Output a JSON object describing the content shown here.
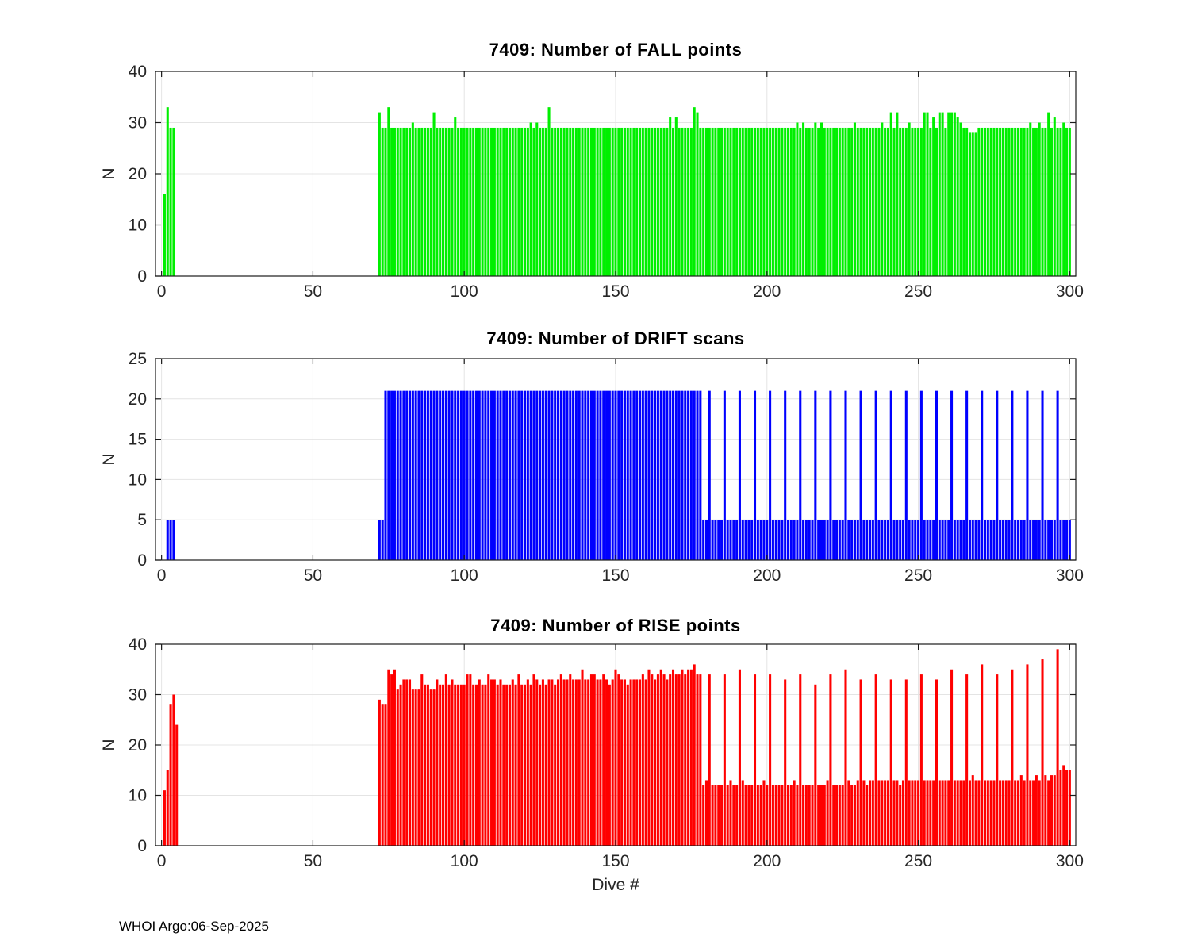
{
  "figure": {
    "xlabel": "Dive #",
    "footer": "WHOI Argo:06-Sep-2025",
    "background_color": "#ffffff",
    "axis_color": "#1a1a1a",
    "grid_color": "#e4e4e4",
    "tick_label_color": "#262626"
  },
  "chart_data": [
    {
      "type": "bar",
      "title": "7409: Number of FALL points",
      "ylabel": "N",
      "xlabel": "",
      "color": "#00ef00",
      "xlim": [
        -2,
        302
      ],
      "ylim": [
        0,
        40
      ],
      "x_ticks": [
        0,
        50,
        100,
        150,
        200,
        250,
        300
      ],
      "y_ticks": [
        0,
        10,
        20,
        30,
        40
      ],
      "grid": true,
      "x_start": 1,
      "values": [
        16,
        33,
        29,
        29,
        0,
        0,
        0,
        0,
        0,
        0,
        0,
        0,
        0,
        0,
        0,
        0,
        0,
        0,
        0,
        0,
        0,
        0,
        0,
        0,
        0,
        0,
        0,
        0,
        0,
        0,
        0,
        0,
        0,
        0,
        0,
        0,
        0,
        0,
        0,
        0,
        0,
        0,
        0,
        0,
        0,
        0,
        0,
        0,
        0,
        0,
        0,
        0,
        0,
        0,
        0,
        0,
        0,
        0,
        0,
        0,
        0,
        0,
        0,
        0,
        0,
        0,
        0,
        0,
        0,
        0,
        0,
        32,
        29,
        29,
        33,
        29,
        29,
        29,
        29,
        29,
        29,
        29,
        30,
        29,
        29,
        29,
        29,
        29,
        29,
        32,
        29,
        29,
        29,
        29,
        29,
        29,
        31,
        29,
        29,
        29,
        29,
        29,
        29,
        29,
        29,
        29,
        29,
        29,
        29,
        29,
        29,
        29,
        29,
        29,
        29,
        29,
        29,
        29,
        29,
        29,
        29,
        30,
        29,
        30,
        29,
        29,
        29,
        33,
        29,
        29,
        29,
        29,
        29,
        29,
        29,
        29,
        29,
        29,
        29,
        29,
        29,
        29,
        29,
        29,
        29,
        29,
        29,
        29,
        29,
        29,
        29,
        29,
        29,
        29,
        29,
        29,
        29,
        29,
        29,
        29,
        29,
        29,
        29,
        29,
        29,
        29,
        29,
        31,
        29,
        31,
        29,
        29,
        29,
        29,
        29,
        33,
        32,
        29,
        29,
        29,
        29,
        29,
        29,
        29,
        29,
        29,
        29,
        29,
        29,
        29,
        29,
        29,
        29,
        29,
        29,
        29,
        29,
        29,
        29,
        29,
        29,
        29,
        29,
        29,
        29,
        29,
        29,
        29,
        29,
        30,
        29,
        30,
        29,
        29,
        29,
        30,
        29,
        30,
        29,
        29,
        29,
        29,
        29,
        29,
        29,
        29,
        29,
        29,
        30,
        29,
        29,
        29,
        29,
        29,
        29,
        29,
        29,
        30,
        29,
        29,
        32,
        29,
        32,
        29,
        29,
        29,
        30,
        29,
        29,
        29,
        29,
        32,
        32,
        29,
        31,
        29,
        32,
        32,
        29,
        32,
        32,
        32,
        31,
        30,
        29,
        29,
        28,
        28,
        28,
        29,
        29,
        29,
        29,
        29,
        29,
        29,
        29,
        29,
        29,
        29,
        29,
        29,
        29,
        29,
        29,
        29,
        30,
        29,
        29,
        30,
        29,
        29,
        32,
        29,
        31,
        29,
        29,
        30,
        29,
        29
      ]
    },
    {
      "type": "bar",
      "title": "7409: Number of DRIFT scans",
      "ylabel": "N",
      "xlabel": "",
      "color": "#0000ff",
      "xlim": [
        -2,
        302
      ],
      "ylim": [
        0,
        25
      ],
      "x_ticks": [
        0,
        50,
        100,
        150,
        200,
        250,
        300
      ],
      "y_ticks": [
        0,
        5,
        10,
        15,
        20,
        25
      ],
      "grid": true,
      "x_start": 1,
      "values": [
        0,
        5,
        5,
        5,
        0,
        0,
        0,
        0,
        0,
        0,
        0,
        0,
        0,
        0,
        0,
        0,
        0,
        0,
        0,
        0,
        0,
        0,
        0,
        0,
        0,
        0,
        0,
        0,
        0,
        0,
        0,
        0,
        0,
        0,
        0,
        0,
        0,
        0,
        0,
        0,
        0,
        0,
        0,
        0,
        0,
        0,
        0,
        0,
        0,
        0,
        0,
        0,
        0,
        0,
        0,
        0,
        0,
        0,
        0,
        0,
        0,
        0,
        0,
        0,
        0,
        0,
        0,
        0,
        0,
        0,
        0,
        5,
        5,
        21,
        21,
        21,
        21,
        21,
        21,
        21,
        21,
        21,
        21,
        21,
        21,
        21,
        21,
        21,
        21,
        21,
        21,
        21,
        21,
        21,
        21,
        21,
        21,
        21,
        21,
        21,
        21,
        21,
        21,
        21,
        21,
        21,
        21,
        21,
        21,
        21,
        21,
        21,
        21,
        21,
        21,
        21,
        21,
        21,
        21,
        21,
        21,
        21,
        21,
        21,
        21,
        21,
        21,
        21,
        21,
        21,
        21,
        21,
        21,
        21,
        21,
        21,
        21,
        21,
        21,
        21,
        21,
        21,
        21,
        21,
        21,
        21,
        21,
        21,
        21,
        21,
        21,
        21,
        21,
        21,
        21,
        21,
        21,
        21,
        21,
        21,
        21,
        21,
        21,
        21,
        21,
        21,
        21,
        21,
        21,
        21,
        21,
        21,
        21,
        21,
        21,
        21,
        21,
        21,
        5,
        5,
        21,
        5,
        5,
        5,
        5,
        21,
        5,
        5,
        5,
        5,
        21,
        5,
        5,
        5,
        5,
        21,
        5,
        5,
        5,
        5,
        21,
        5,
        5,
        5,
        5,
        21,
        5,
        5,
        5,
        5,
        21,
        5,
        5,
        5,
        5,
        21,
        5,
        5,
        5,
        5,
        21,
        5,
        5,
        5,
        5,
        21,
        5,
        5,
        5,
        5,
        21,
        5,
        5,
        5,
        5,
        21,
        5,
        5,
        5,
        5,
        21,
        5,
        5,
        5,
        5,
        21,
        5,
        5,
        5,
        5,
        21,
        5,
        5,
        5,
        5,
        21,
        5,
        5,
        5,
        5,
        21,
        5,
        5,
        5,
        5,
        21,
        5,
        5,
        5,
        5,
        21,
        5,
        5,
        5,
        5,
        21,
        5,
        5,
        5,
        5,
        21,
        5,
        5,
        5,
        5,
        21,
        5,
        5,
        5,
        5,
        21,
        5,
        5,
        5,
        5,
        21,
        5,
        5,
        5,
        5
      ]
    },
    {
      "type": "bar",
      "title": "7409: Number of RISE points",
      "ylabel": "N",
      "xlabel": "Dive #",
      "color": "#ff0000",
      "xlim": [
        -2,
        302
      ],
      "ylim": [
        0,
        40
      ],
      "x_ticks": [
        0,
        50,
        100,
        150,
        200,
        250,
        300
      ],
      "y_ticks": [
        0,
        10,
        20,
        30,
        40
      ],
      "grid": true,
      "x_start": 1,
      "values": [
        11,
        15,
        28,
        30,
        24,
        0,
        0,
        0,
        0,
        0,
        0,
        0,
        0,
        0,
        0,
        0,
        0,
        0,
        0,
        0,
        0,
        0,
        0,
        0,
        0,
        0,
        0,
        0,
        0,
        0,
        0,
        0,
        0,
        0,
        0,
        0,
        0,
        0,
        0,
        0,
        0,
        0,
        0,
        0,
        0,
        0,
        0,
        0,
        0,
        0,
        0,
        0,
        0,
        0,
        0,
        0,
        0,
        0,
        0,
        0,
        0,
        0,
        0,
        0,
        0,
        0,
        0,
        0,
        0,
        0,
        0,
        29,
        28,
        28,
        35,
        34,
        35,
        31,
        32,
        33,
        33,
        33,
        31,
        31,
        31,
        34,
        32,
        32,
        31,
        31,
        33,
        32,
        32,
        34,
        32,
        33,
        32,
        32,
        32,
        32,
        34,
        34,
        32,
        32,
        33,
        32,
        32,
        34,
        33,
        33,
        32,
        33,
        32,
        32,
        32,
        33,
        32,
        34,
        32,
        32,
        33,
        32,
        34,
        33,
        32,
        33,
        32,
        33,
        33,
        32,
        33,
        34,
        33,
        33,
        34,
        33,
        33,
        33,
        35,
        33,
        33,
        34,
        34,
        33,
        33,
        34,
        33,
        32,
        33,
        35,
        34,
        33,
        33,
        32,
        33,
        33,
        33,
        33,
        34,
        33,
        35,
        34,
        33,
        34,
        35,
        34,
        33,
        34,
        35,
        34,
        34,
        35,
        34,
        35,
        35,
        36,
        34,
        34,
        12,
        13,
        34,
        12,
        12,
        12,
        12,
        34,
        12,
        13,
        12,
        12,
        35,
        13,
        12,
        12,
        12,
        34,
        12,
        12,
        13,
        12,
        34,
        12,
        12,
        12,
        12,
        33,
        12,
        12,
        13,
        12,
        34,
        12,
        12,
        12,
        12,
        32,
        12,
        12,
        12,
        13,
        34,
        12,
        12,
        12,
        12,
        35,
        13,
        12,
        12,
        13,
        33,
        13,
        12,
        13,
        13,
        34,
        13,
        13,
        13,
        13,
        33,
        13,
        13,
        12,
        13,
        33,
        13,
        13,
        13,
        13,
        34,
        13,
        13,
        13,
        13,
        33,
        13,
        13,
        13,
        13,
        35,
        13,
        13,
        13,
        13,
        34,
        13,
        14,
        13,
        13,
        36,
        13,
        13,
        13,
        13,
        34,
        13,
        13,
        13,
        13,
        35,
        13,
        13,
        14,
        13,
        36,
        13,
        13,
        14,
        13,
        37,
        14,
        13,
        14,
        14,
        39,
        15,
        16,
        15,
        15
      ]
    }
  ]
}
